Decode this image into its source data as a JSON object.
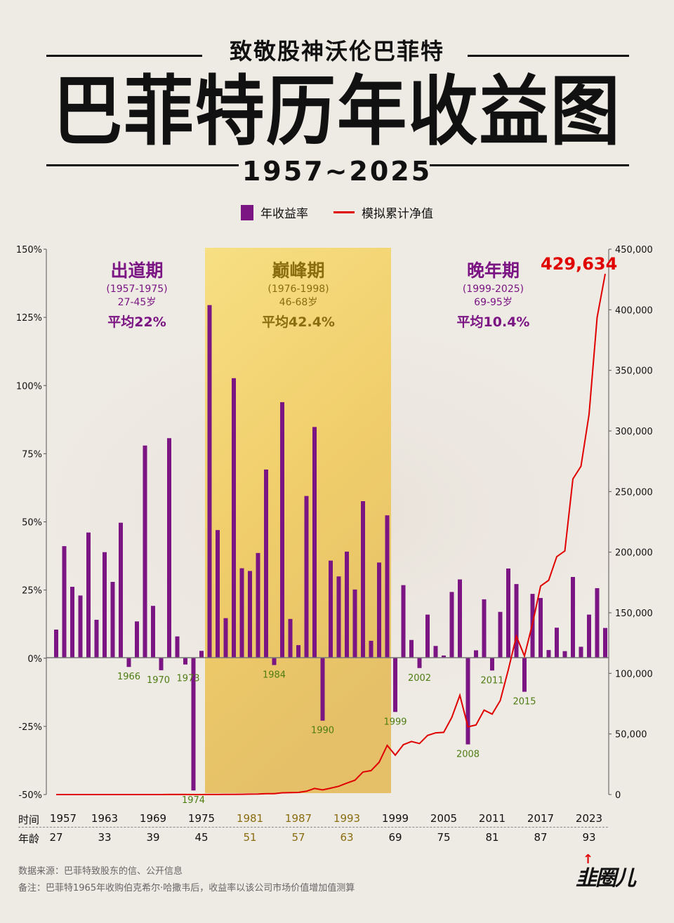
{
  "header": {
    "subtitle": "致敬股神沃伦巴菲特",
    "title": "巴菲特历年收益图",
    "year_range": "1957~2025"
  },
  "legend": {
    "bar_label": "年收益率",
    "line_label": "模拟累计净值",
    "bar_color": "#7b1583",
    "line_color": "#e00000"
  },
  "periods": [
    {
      "name": "出道期",
      "range": "(1957-1975)",
      "age": "27-45岁",
      "avg": "平均22%",
      "color": "#7b1583"
    },
    {
      "name": "巅峰期",
      "range": "(1976-1998)",
      "age": "46-68岁",
      "avg": "平均42.4%",
      "color": "#8a6d10"
    },
    {
      "name": "晚年期",
      "range": "(1999-2025)",
      "age": "69-95岁",
      "avg": "平均10.4%",
      "color": "#7b1583"
    }
  ],
  "final_value_label": "429,634",
  "x_axis": {
    "time_label": "时间",
    "age_label": "年龄",
    "ticks": [
      {
        "year": "1957",
        "age": "27",
        "highlight": false
      },
      {
        "year": "1963",
        "age": "33",
        "highlight": false
      },
      {
        "year": "1969",
        "age": "39",
        "highlight": false
      },
      {
        "year": "1975",
        "age": "45",
        "highlight": false
      },
      {
        "year": "1981",
        "age": "51",
        "highlight": true
      },
      {
        "year": "1987",
        "age": "57",
        "highlight": true
      },
      {
        "year": "1993",
        "age": "63",
        "highlight": true
      },
      {
        "year": "1999",
        "age": "69",
        "highlight": false
      },
      {
        "year": "2005",
        "age": "75",
        "highlight": false
      },
      {
        "year": "2011",
        "age": "81",
        "highlight": false
      },
      {
        "year": "2017",
        "age": "87",
        "highlight": false
      },
      {
        "year": "2023",
        "age": "93",
        "highlight": false
      }
    ]
  },
  "left_axis_ticks": [
    "150%",
    "125%",
    "100%",
    "75%",
    "50%",
    "25%",
    "0%",
    "-25%",
    "-50%"
  ],
  "right_axis_ticks": [
    "450,000",
    "400,000",
    "350,000",
    "300,000",
    "250,000",
    "200,000",
    "150,000",
    "100,000",
    "50,000",
    "0"
  ],
  "negative_year_labels": [
    "1966",
    "1970",
    "1973",
    "1974",
    "1984",
    "1990",
    "1999",
    "2002",
    "2008",
    "2011",
    "2015"
  ],
  "footer": {
    "source": "数据来源：巴菲特致股东的信、公开信息",
    "note": "备注：巴菲特1965年收购伯克希尔·哈撒韦后，收益率以该公司市场价值增加值测算",
    "logo": "韭圈儿"
  },
  "chart_data": {
    "type": "bar",
    "title": "巴菲特历年收益图",
    "subtitle": "致敬股神沃伦巴菲特 1957~2025",
    "xlabel": "时间 / 年龄",
    "ylabel": "年收益率 (%)",
    "y2label": "模拟累计净值",
    "ylim": [
      -50,
      150
    ],
    "y2lim": [
      0,
      450000
    ],
    "legend_position": "top",
    "grid": false,
    "categories": [
      1957,
      1958,
      1959,
      1960,
      1961,
      1962,
      1963,
      1964,
      1965,
      1966,
      1967,
      1968,
      1969,
      1970,
      1971,
      1972,
      1973,
      1974,
      1975,
      1976,
      1977,
      1978,
      1979,
      1980,
      1981,
      1982,
      1983,
      1984,
      1985,
      1986,
      1987,
      1988,
      1989,
      1990,
      1991,
      1992,
      1993,
      1994,
      1995,
      1996,
      1997,
      1998,
      1999,
      2000,
      2001,
      2002,
      2003,
      2004,
      2005,
      2006,
      2007,
      2008,
      2009,
      2010,
      2011,
      2012,
      2013,
      2014,
      2015,
      2016,
      2017,
      2018,
      2019,
      2020,
      2021,
      2022,
      2023,
      2024,
      2025
    ],
    "series": [
      {
        "name": "年收益率",
        "type": "bar",
        "axis": "left",
        "values": [
          10.3,
          40.9,
          26.0,
          22.8,
          45.9,
          13.9,
          38.7,
          27.8,
          49.5,
          -3.4,
          13.3,
          77.8,
          19.0,
          -4.6,
          80.5,
          7.8,
          -2.5,
          -48.7,
          2.5,
          129.3,
          46.8,
          14.5,
          102.5,
          32.8,
          31.8,
          38.4,
          69.0,
          -2.7,
          93.7,
          14.2,
          4.6,
          59.3,
          84.6,
          -23.1,
          35.6,
          29.8,
          38.9,
          25.0,
          57.4,
          6.2,
          34.9,
          52.2,
          -19.9,
          26.6,
          6.5,
          -3.8,
          15.8,
          4.3,
          0.8,
          24.1,
          28.7,
          -31.8,
          2.7,
          21.4,
          -4.7,
          16.8,
          32.7,
          27.0,
          -12.5,
          23.4,
          21.9,
          2.8,
          11.0,
          2.4,
          29.6,
          4.0,
          15.8,
          25.5,
          10.9
        ]
      },
      {
        "name": "模拟累计净值",
        "type": "line",
        "axis": "right",
        "values": [
          1.1,
          1.6,
          2.0,
          2.4,
          3.6,
          4.1,
          5.6,
          7.2,
          10.8,
          10.4,
          11.8,
          21.0,
          25.0,
          23.8,
          43.0,
          46.3,
          45.2,
          23.2,
          23.8,
          54.5,
          80.0,
          91.6,
          185.5,
          246.4,
          324.7,
          449.4,
          759.4,
          738.9,
          1431.3,
          1634.5,
          1709.7,
          2723.6,
          5027.9,
          3866.5,
          5243.0,
          6805.4,
          9452.7,
          11815.9,
          18598.2,
          19751.3,
          26644.5,
          40553.0,
          32483.0,
          41124.0,
          43797.0,
          42133.0,
          48790.0,
          50888.0,
          51295.0,
          63657.0,
          81927.0,
          55875.0,
          57383.0,
          69663.0,
          66389.0,
          77542.0,
          102897.0,
          130679.0,
          114344.0,
          141101.0,
          172002.0,
          176818.0,
          196268.0,
          200978.0,
          260468.0,
          270887.0,
          313687.0,
          393677.0,
          429634.0
        ]
      }
    ],
    "annotations": [
      {
        "text": "429,634",
        "x": 2025,
        "axis": "right"
      },
      {
        "text": "出道期 (1957-1975) 27-45岁 平均22%"
      },
      {
        "text": "巅峰期 (1976-1998) 46-68岁 平均42.4%"
      },
      {
        "text": "晚年期 (1999-2025) 69-95岁 平均10.4%"
      }
    ]
  }
}
